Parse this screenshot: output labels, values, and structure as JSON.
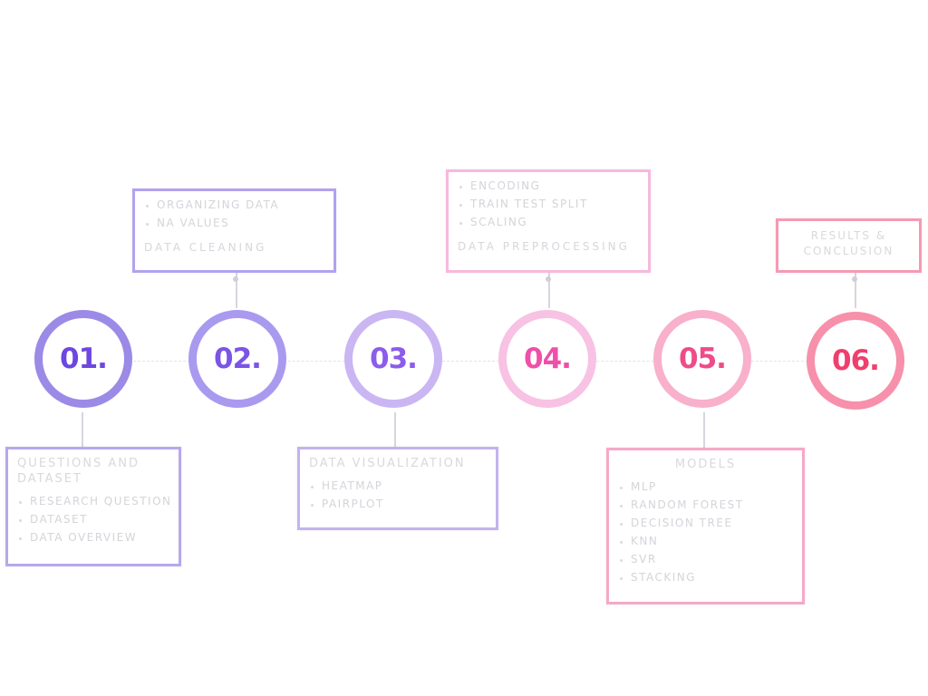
{
  "steps": [
    {
      "label": "01.",
      "ring_color": "#9b8ae6",
      "text_color": "#6c47e0",
      "box": {
        "title": "QUESTIONS AND DATASET",
        "items": [
          "RESEARCH QUESTION",
          "DATASET",
          "DATA OVERVIEW"
        ],
        "footer": "",
        "border_color": "#b7a7ee"
      }
    },
    {
      "label": "02.",
      "ring_color": "#a99af0",
      "text_color": "#7a55e6",
      "box": {
        "title": "",
        "items": [
          "ORGANIZING DATA",
          "NA VALUES"
        ],
        "footer": "DATA CLEANING",
        "border_color": "#b2a2ef"
      }
    },
    {
      "label": "03.",
      "ring_color": "#c9b6f3",
      "text_color": "#8c5cec",
      "box": {
        "title": "DATA VISUALIZATION",
        "items": [
          "HEATMAP",
          "PAIRPLOT"
        ],
        "footer": "",
        "border_color": "#c3b3ef"
      }
    },
    {
      "label": "04.",
      "ring_color": "#f7c2e3",
      "text_color": "#ef4fa8",
      "box": {
        "title": "",
        "items": [
          "ENCODING",
          "TRAIN TEST SPLIT",
          "SCALING"
        ],
        "footer": "DATA PREPROCESSING",
        "border_color": "#f7b9dd"
      }
    },
    {
      "label": "05.",
      "ring_color": "#f8b0cb",
      "text_color": "#ee4b89",
      "box": {
        "title": "MODELS",
        "items": [
          "MLP",
          "RANDOM FOREST",
          "DECISION TREE",
          "KNN",
          "SVR",
          "STACKING"
        ],
        "footer": "",
        "border_color": "#f5a9c6"
      }
    },
    {
      "label": "06.",
      "ring_color": "#f790ab",
      "text_color": "#ef3f6d",
      "box": {
        "title": "RESULTS & CONCLUSION",
        "items": [],
        "footer": "",
        "border_color": "#f59ab3"
      }
    }
  ]
}
